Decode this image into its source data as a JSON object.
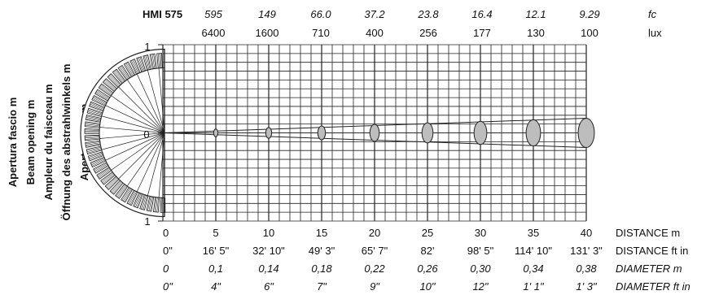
{
  "product": "HMI 575",
  "top_rows": {
    "fc": {
      "values": [
        "595",
        "149",
        "66.0",
        "37.2",
        "23.8",
        "16.4",
        "12.1",
        "9.29"
      ],
      "unit": "fc"
    },
    "lux": {
      "values": [
        "6400",
        "1600",
        "710",
        "400",
        "256",
        "177",
        "130",
        "100"
      ],
      "unit": "lux"
    }
  },
  "y_axis_titles": [
    "Apertura fascio m",
    "Beam opening m",
    "Ampleur du faisceau m",
    "Öffnung des abstrahlwinkels m",
    "Apertura haz m"
  ],
  "y_ticks": [
    "1",
    "0",
    "1"
  ],
  "bottom_rows": [
    {
      "values": [
        "0",
        "5",
        "10",
        "15",
        "20",
        "25",
        "30",
        "35",
        "40"
      ],
      "label": "DISTANCE m",
      "italic": false
    },
    {
      "values": [
        "0\"",
        "16' 5\"",
        "32' 10\"",
        "49' 3\"",
        "65' 7\"",
        "82'",
        "98' 5\"",
        "114' 10\"",
        "131' 3\""
      ],
      "label": "DISTANCE ft in",
      "italic": false
    },
    {
      "values": [
        "0",
        "0,1",
        "0,14",
        "0,18",
        "0,22",
        "0,26",
        "0,30",
        "0,34",
        "0,38"
      ],
      "label": "DIAMETER m",
      "italic": true
    },
    {
      "values": [
        "0\"",
        "4\"",
        "6\"",
        "7\"",
        "9\"",
        "10\"",
        "12\"",
        "1' 1\"",
        "1' 3\""
      ],
      "label": "DIAMETER ft in",
      "italic": true
    }
  ],
  "chart_data": {
    "type": "beam-diagram",
    "x_distance_m": [
      0,
      5,
      10,
      15,
      20,
      25,
      30,
      35,
      40
    ],
    "beam_diameter_m": [
      0,
      0.1,
      0.14,
      0.18,
      0.22,
      0.26,
      0.3,
      0.34,
      0.38
    ],
    "illuminance_fc": [
      595,
      149,
      66.0,
      37.2,
      23.8,
      16.4,
      12.1,
      9.29
    ],
    "illuminance_lux": [
      6400,
      1600,
      710,
      400,
      256,
      177,
      130,
      100
    ],
    "ylim": [
      -1,
      1
    ],
    "grid": true
  },
  "colors": {
    "grid": "#222222",
    "spot_fill": "#bdbdbd",
    "fan_fill": "#ffffff"
  }
}
